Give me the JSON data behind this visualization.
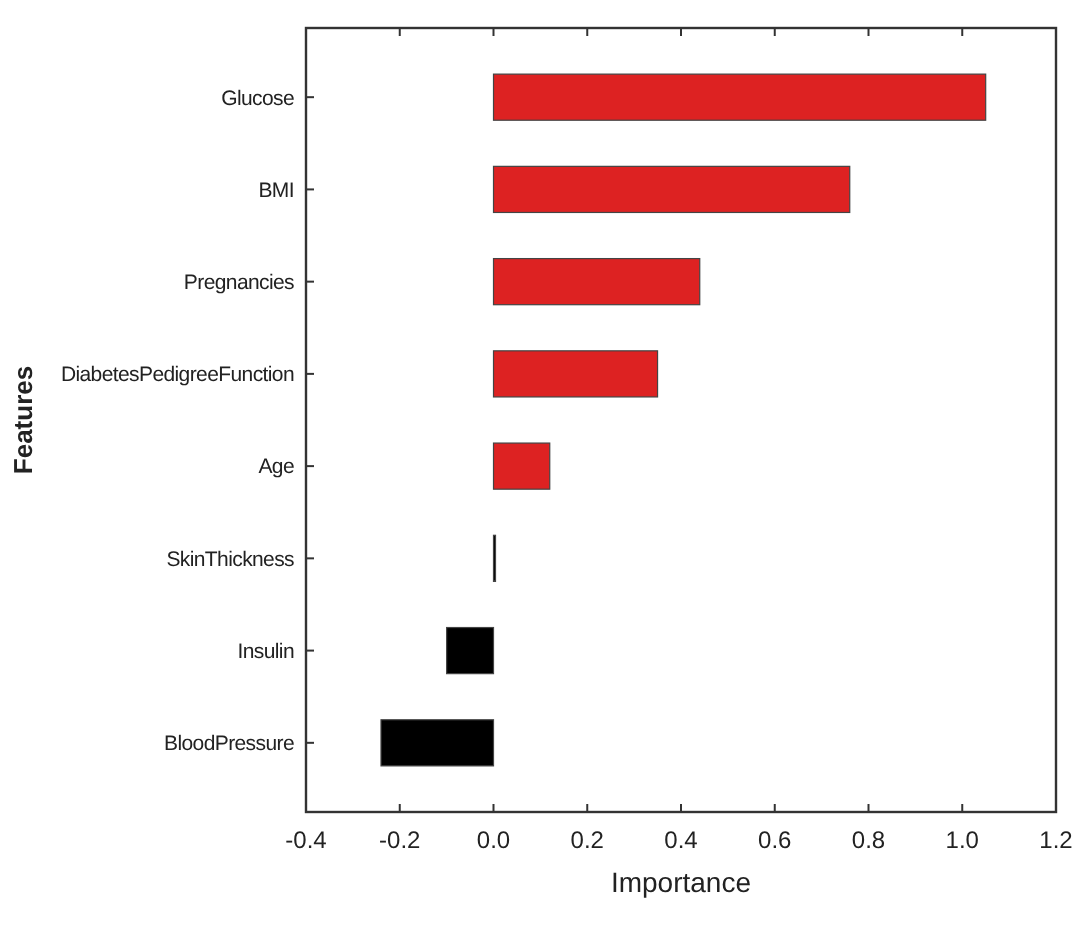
{
  "chart_data": {
    "type": "bar",
    "orientation": "horizontal",
    "xlabel": "Importance",
    "ylabel": "Features",
    "categories": [
      "Glucose",
      "BMI",
      "Pregnancies",
      "DiabetesPedigreeFunction",
      "Age",
      "SkinThickness",
      "Insulin",
      "BloodPressure"
    ],
    "values": [
      1.05,
      0.76,
      0.44,
      0.35,
      0.12,
      0.003,
      -0.1,
      -0.24
    ],
    "colors": [
      "#dd2222",
      "#dd2222",
      "#dd2222",
      "#dd2222",
      "#dd2222",
      "#000000",
      "#000000",
      "#000000"
    ],
    "xlim": [
      -0.4,
      1.2
    ],
    "xticks": [
      -0.4,
      -0.2,
      {
        "value": 0,
        "label": "0.0"
      },
      0.2,
      0.4,
      0.6,
      0.8,
      {
        "value": 1,
        "label": "1.0"
      },
      1.2
    ],
    "grid": false
  }
}
